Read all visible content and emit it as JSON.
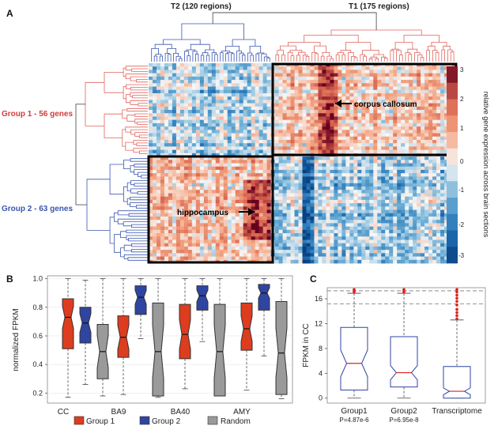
{
  "panels": {
    "a": {
      "letter": "A",
      "clusters": {
        "t2": "T2 (120 regions)",
        "t1": "T1 (175 regions)"
      },
      "groups": {
        "g1": "Group 1 - 56 genes",
        "g2": "Group 2 - 63 genes"
      },
      "annotations": {
        "cc": "corpus callosum",
        "hippo": "hippocampus"
      },
      "colorbar": {
        "title": "relative gene expression across brain sections",
        "ticks": [
          "3",
          "2",
          "1",
          "0",
          "-1",
          "-2",
          "-3"
        ]
      }
    },
    "b": {
      "letter": "B",
      "chart_data": {
        "type": "box",
        "title": "",
        "ylabel": "normalized FPKM",
        "ylim": [
          0.13,
          1.02
        ],
        "yticks": [
          "0.2",
          "0.4",
          "0.6",
          "0.8",
          "1.0"
        ],
        "categories": [
          "CC",
          "BA9",
          "BA40",
          "AMY"
        ],
        "series": [
          {
            "name": "Group 1",
            "color": "#dd3d1e",
            "boxes": [
              [
                0.17,
                0.51,
                0.73,
                0.86,
                1.0
              ],
              [
                0.19,
                0.45,
                0.59,
                0.74,
                1.0
              ],
              [
                0.23,
                0.44,
                0.61,
                0.82,
                1.0
              ],
              [
                0.22,
                0.5,
                0.65,
                0.83,
                1.0
              ]
            ]
          },
          {
            "name": "Group 2",
            "color": "#2f45a2",
            "boxes": [
              [
                0.26,
                0.55,
                0.69,
                0.8,
                0.99
              ],
              [
                0.58,
                0.75,
                0.87,
                0.95,
                1.0
              ],
              [
                0.56,
                0.78,
                0.88,
                0.95,
                1.0
              ],
              [
                0.46,
                0.78,
                0.9,
                0.96,
                1.0
              ]
            ]
          },
          {
            "name": "Random",
            "color": "#9a9a9a",
            "boxes": [
              [
                0.18,
                0.3,
                0.49,
                0.68,
                1.0
              ],
              [
                0.17,
                0.18,
                0.49,
                0.83,
                1.0
              ],
              [
                0.18,
                0.18,
                0.49,
                0.82,
                1.0
              ],
              [
                0.16,
                0.19,
                0.48,
                0.84,
                1.0
              ]
            ]
          }
        ]
      }
    },
    "c": {
      "letter": "C",
      "chart_data": {
        "type": "box",
        "title": "",
        "ylabel": "FPKM in CC",
        "ylim": [
          -0.8,
          17.8
        ],
        "yticks": [
          "0",
          "4",
          "8",
          "12",
          "16"
        ],
        "categories": [
          "Group1",
          "Group2",
          "Transcriptome"
        ],
        "pvalues": [
          "P=4.87e-6",
          "P=6.95e-8",
          ""
        ],
        "dashed_lines": [
          17.3,
          15.2
        ],
        "boxes": [
          [
            0.0,
            1.3,
            5.6,
            11.4,
            16.9
          ],
          [
            0.0,
            1.8,
            4.1,
            9.9,
            16.9
          ],
          [
            0.0,
            0.0,
            1.1,
            5.1,
            12.6
          ]
        ],
        "outliers": [
          [
            17.1,
            17.3,
            17.5
          ],
          [
            17.1,
            17.3,
            17.5
          ],
          [
            12.8,
            13.3,
            13.8,
            14.3,
            15.0,
            15.6,
            16.1,
            16.6,
            17.1,
            17.5
          ]
        ]
      }
    }
  }
}
